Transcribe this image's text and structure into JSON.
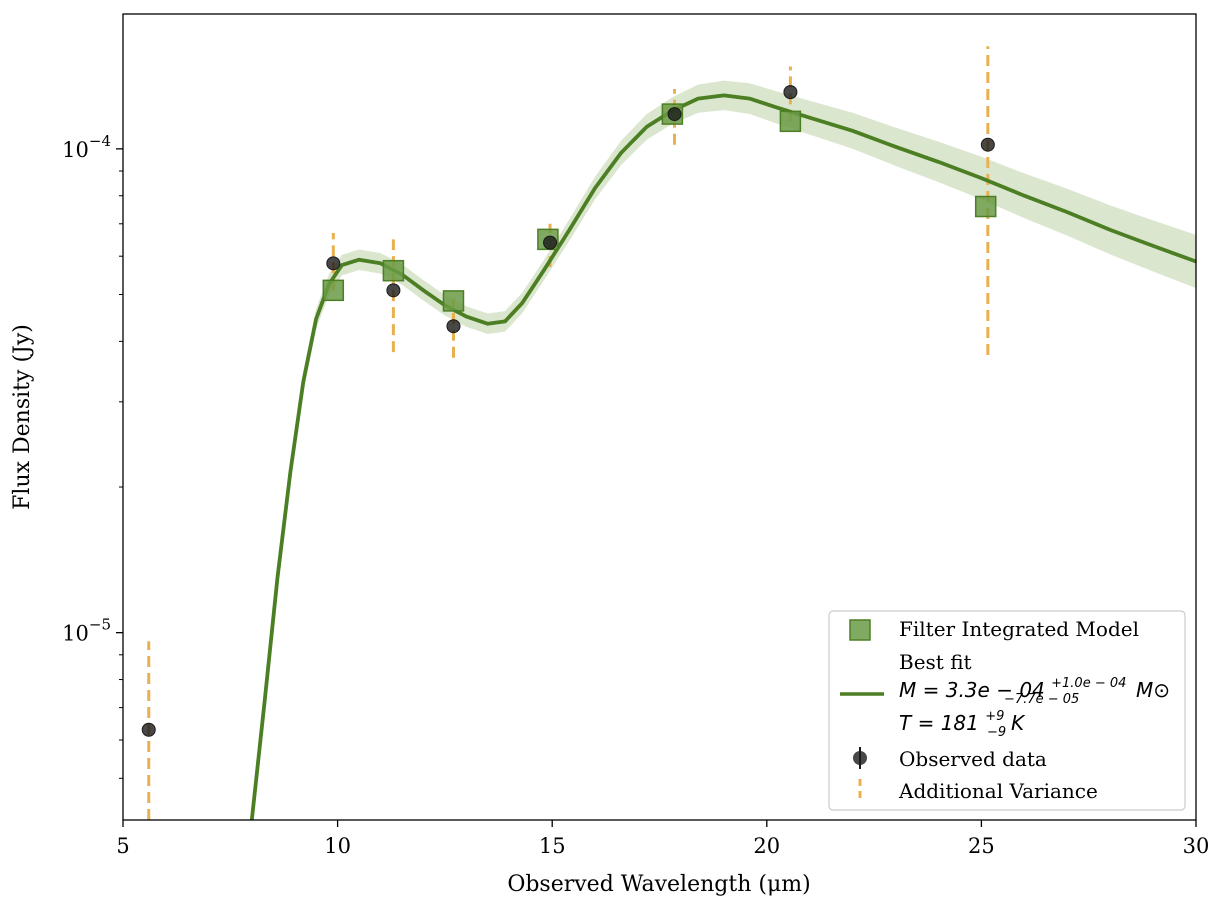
{
  "chart_data": {
    "type": "scatter",
    "xlabel": "Observed Wavelength (μm)",
    "ylabel": "Flux Density (Jy)",
    "xlim": [
      5,
      30
    ],
    "ylim": [
      4.1e-06,
      0.00019
    ],
    "yscale": "log",
    "x_ticks": [
      5,
      10,
      15,
      20,
      25,
      30
    ],
    "x_tick_labels": [
      "5",
      "10",
      "15",
      "20",
      "25",
      "30"
    ],
    "y_ticks": [
      1e-05,
      0.0001
    ],
    "y_tick_labels": [
      {
        "base": "10",
        "exp": "−5"
      },
      {
        "base": "10",
        "exp": "−4"
      }
    ],
    "grid": false,
    "legend_position": "bottom-right",
    "colors": {
      "model": "#4c7f23",
      "model_fill": "#6a9a45",
      "band": "#d5e2c6",
      "observed": "#1a1a1a",
      "variance": "#e8b04e"
    },
    "series": [
      {
        "name": "Filter Integrated Model",
        "kind": "square-marker",
        "x": [
          9.9,
          11.3,
          12.7,
          14.9,
          17.8,
          20.55,
          25.1
        ],
        "y": [
          5.1e-05,
          5.6e-05,
          4.85e-05,
          6.5e-05,
          0.000118,
          0.000114,
          7.6e-05
        ]
      },
      {
        "name": "Best fit",
        "kind": "line",
        "label_lines": [
          "Best fit",
          {
            "prefix": "M = 3.3e − 04",
            "sup": "+1.0e − 04",
            "sub": "−7.7e − 05",
            "suffix": "M⊙"
          },
          {
            "prefix": "T = 181",
            "sup": "+9",
            "sub": "−9",
            "suffix": "K"
          }
        ],
        "x": [
          8.0,
          8.3,
          8.6,
          8.9,
          9.2,
          9.5,
          9.8,
          10.1,
          10.5,
          11.0,
          11.5,
          12.0,
          12.5,
          13.0,
          13.5,
          13.9,
          14.3,
          14.8,
          15.4,
          16.0,
          16.6,
          17.2,
          17.8,
          18.4,
          19.0,
          19.6,
          20.2,
          21.0,
          22.0,
          23.0,
          24.0,
          25.0,
          26.0,
          27.0,
          28.0,
          29.0,
          30.0
        ],
        "y": [
          4.1e-06,
          7.2e-06,
          1.3e-05,
          2.15e-05,
          3.3e-05,
          4.45e-05,
          5.25e-05,
          5.75e-05,
          5.9e-05,
          5.8e-05,
          5.5e-05,
          5.1e-05,
          4.75e-05,
          4.5e-05,
          4.35e-05,
          4.4e-05,
          4.8e-05,
          5.6e-05,
          6.8e-05,
          8.3e-05,
          9.8e-05,
          0.000111,
          0.00012,
          0.000127,
          0.000129,
          0.000127,
          0.000122,
          0.000116,
          0.000109,
          0.000101,
          9.4e-05,
          8.7e-05,
          8e-05,
          7.4e-05,
          6.8e-05,
          6.3e-05,
          5.85e-05
        ]
      },
      {
        "name": "Observed data",
        "kind": "point",
        "x": [
          5.6,
          9.9,
          11.3,
          12.7,
          14.95,
          17.85,
          20.55,
          25.15
        ],
        "y": [
          6.3e-06,
          5.8e-05,
          5.1e-05,
          4.3e-05,
          6.4e-05,
          0.000118,
          0.000131,
          0.000102
        ]
      },
      {
        "name": "Additional Variance",
        "kind": "error-bar",
        "x": [
          5.6,
          9.9,
          11.3,
          12.7,
          14.95,
          17.85,
          20.55,
          25.15
        ],
        "y_low": [
          4.1e-06,
          5.1e-05,
          3.8e-05,
          3.7e-05,
          5.7e-05,
          0.000102,
          0.000114,
          3.75e-05
        ],
        "y_high": [
          9.6e-06,
          6.7e-05,
          6.5e-05,
          4.9e-05,
          7e-05,
          0.000133,
          0.000148,
          0.000163
        ]
      }
    ]
  }
}
